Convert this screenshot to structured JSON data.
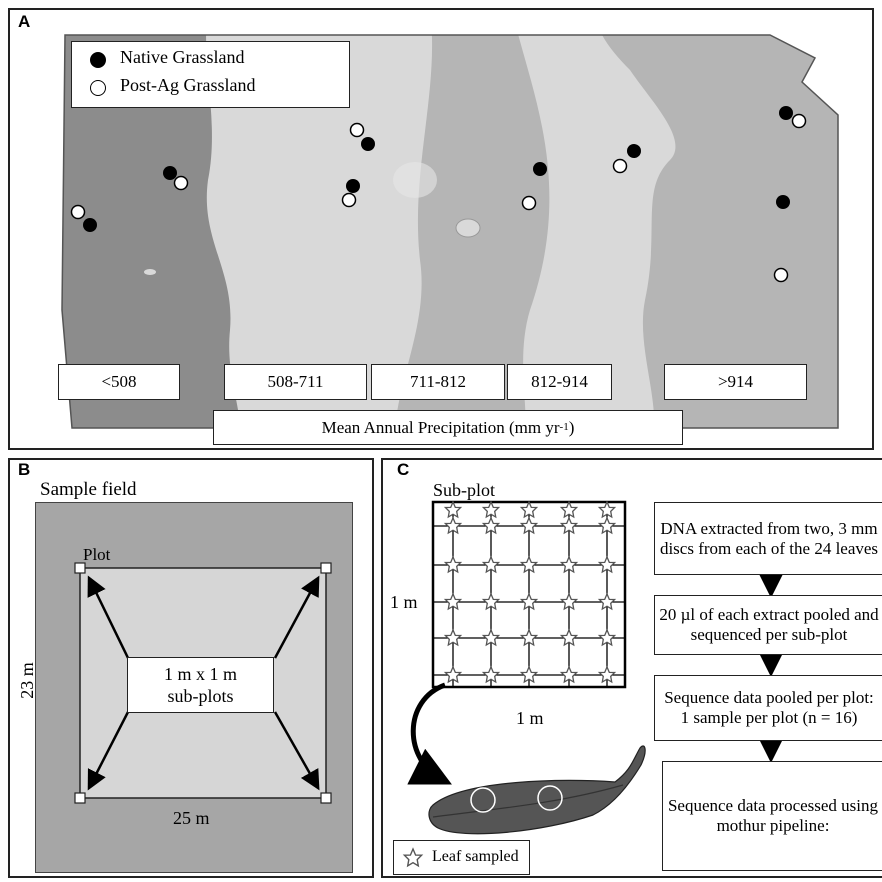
{
  "panel_a": {
    "letter": "A",
    "legend": {
      "native": "Native Grassland",
      "post_ag": "Post-Ag Grassland"
    },
    "precip_ranges": [
      "<508",
      "508-711",
      "711-812",
      "812-914",
      ">914"
    ],
    "precip_title_main": "Mean Annual Precipitation (mm yr",
    "precip_title_sup": "-1",
    "precip_title_end": ")"
  },
  "panel_b": {
    "letter": "B",
    "title": "Sample field",
    "plot_label": "Plot",
    "subplot_label_1": "1 m x 1 m",
    "subplot_label_2": "sub-plots",
    "height_label": "23 m",
    "width_label": "25 m"
  },
  "panel_c": {
    "letter": "C",
    "subplot_title": "Sub-plot",
    "side_label": "1 m",
    "bottom_label": "1 m",
    "legend_label": "Leaf sampled",
    "steps": [
      "DNA extracted from two, 3 mm discs from each of the 24 leaves",
      "20 µl of each extract pooled and sequenced per sub-plot",
      "Sequence data pooled per plot: 1 sample per plot (n = 16)",
      "Sequence data processed using mothur pipeline:"
    ]
  },
  "colors": {
    "zone_dark": "#8c8c8c",
    "zone_light": "#d9d9d9",
    "zone_mid": "#b5b5b5",
    "field_outer": "#a6a6a6",
    "field_inner": "#d6d6d6",
    "leaf": "#555555"
  }
}
